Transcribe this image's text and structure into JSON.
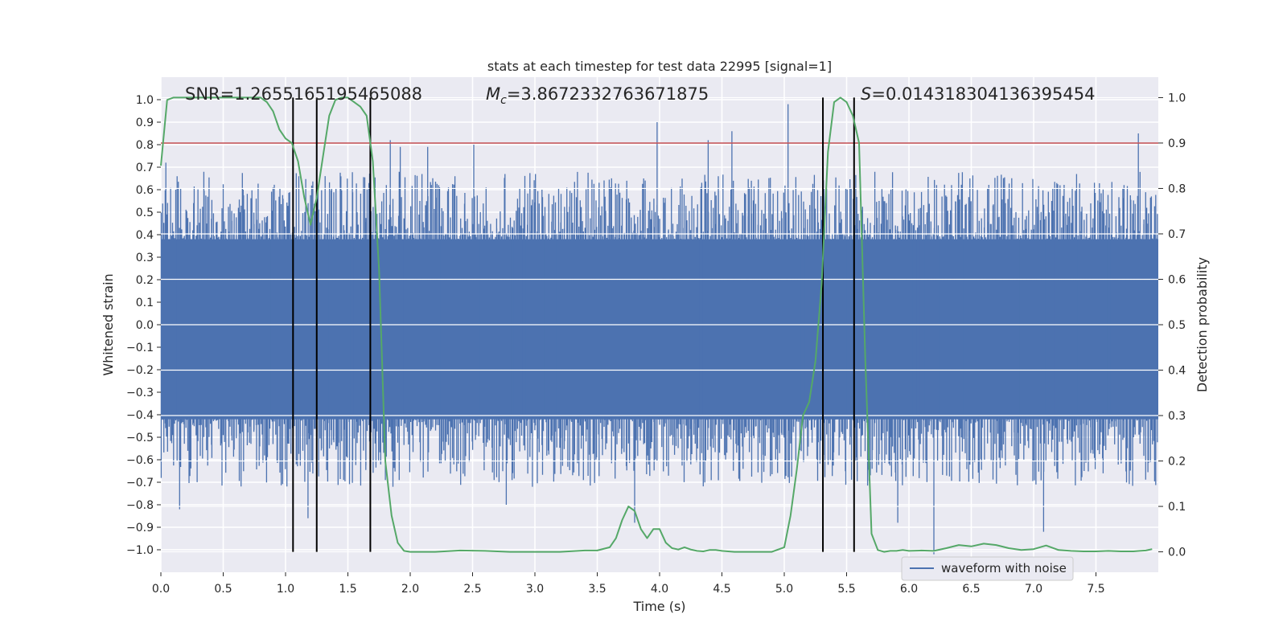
{
  "chart_data": {
    "type": "line",
    "title": "stats at each timestep for test data 22995 [signal=1]",
    "xlabel": "Time (s)",
    "ylabel": "Whitened strain",
    "y2label": "Detection probability",
    "xlim": [
      0.0,
      8.0
    ],
    "ylim": [
      -1.1,
      1.1
    ],
    "y2lim": [
      -0.045,
      1.045
    ],
    "xticks": [
      0.0,
      0.5,
      1.0,
      1.5,
      2.0,
      2.5,
      3.0,
      3.5,
      4.0,
      4.5,
      5.0,
      5.5,
      6.0,
      6.5,
      7.0,
      7.5
    ],
    "yticks": [
      1.0,
      0.9,
      0.8,
      0.7,
      0.6,
      0.5,
      0.4,
      0.3,
      0.2,
      0.1,
      0.0,
      -0.1,
      -0.2,
      -0.3,
      -0.4,
      -0.5,
      -0.6,
      -0.7,
      -0.8,
      -0.9,
      -1.0
    ],
    "y2ticks": [
      1.0,
      0.9,
      0.8,
      0.7,
      0.6,
      0.5,
      0.4,
      0.3,
      0.2,
      0.1,
      0.0
    ],
    "grid": true,
    "legend": {
      "location": "lower-right",
      "entries": [
        "waveform with noise"
      ]
    },
    "annotations": {
      "snr": "SNR=1.2655165195465088",
      "mc": "=3.8672332763671875",
      "mc_symbol": "M",
      "mc_sub": "c",
      "s": "=0.014318304136395454",
      "s_symbol": "S"
    },
    "threshold": {
      "value": 0.9,
      "axis": "detection probability",
      "color": "#c44e52"
    },
    "vertical_lines": [
      1.06,
      1.25,
      1.68,
      5.31,
      5.56
    ],
    "vertical_line_range": [
      0.0,
      1.0
    ],
    "waveform_envelope": {
      "name": "waveform with noise",
      "color": "#4c72b0",
      "dense_band": [
        -0.42,
        0.38
      ],
      "typical_peak": 0.68,
      "typical_trough": -0.72,
      "notable_peaks": [
        {
          "t": 0.04,
          "v": 0.72
        },
        {
          "t": 0.13,
          "v": 0.66
        },
        {
          "t": 0.66,
          "v": 0.6
        },
        {
          "t": 1.26,
          "v": 0.6
        },
        {
          "t": 1.84,
          "v": 0.82
        },
        {
          "t": 1.92,
          "v": 0.79
        },
        {
          "t": 2.14,
          "v": 0.79
        },
        {
          "t": 2.51,
          "v": 0.8
        },
        {
          "t": 3.98,
          "v": 0.9
        },
        {
          "t": 4.39,
          "v": 0.82
        },
        {
          "t": 4.58,
          "v": 0.86
        },
        {
          "t": 5.03,
          "v": 0.98
        },
        {
          "t": 7.84,
          "v": 0.85
        }
      ],
      "notable_troughs": [
        {
          "t": 0.15,
          "v": -0.82
        },
        {
          "t": 1.18,
          "v": -0.86
        },
        {
          "t": 2.77,
          "v": -0.8
        },
        {
          "t": 3.8,
          "v": -0.88
        },
        {
          "t": 5.91,
          "v": -0.88
        },
        {
          "t": 6.2,
          "v": -1.02
        },
        {
          "t": 7.08,
          "v": -0.92
        }
      ]
    },
    "series": [
      {
        "name": "detection probability",
        "axis": "right",
        "color": "#55a868",
        "x": [
          0.0,
          0.05,
          0.1,
          0.15,
          0.2,
          0.3,
          0.4,
          0.5,
          0.6,
          0.7,
          0.8,
          0.85,
          0.9,
          0.95,
          1.0,
          1.05,
          1.1,
          1.15,
          1.2,
          1.25,
          1.3,
          1.35,
          1.4,
          1.45,
          1.5,
          1.55,
          1.6,
          1.65,
          1.7,
          1.75,
          1.8,
          1.85,
          1.9,
          1.95,
          2.0,
          2.2,
          2.4,
          2.6,
          2.8,
          3.0,
          3.2,
          3.4,
          3.5,
          3.6,
          3.65,
          3.7,
          3.75,
          3.8,
          3.85,
          3.9,
          3.95,
          4.0,
          4.05,
          4.1,
          4.15,
          4.2,
          4.25,
          4.3,
          4.35,
          4.4,
          4.45,
          4.5,
          4.6,
          4.7,
          4.8,
          4.9,
          5.0,
          5.05,
          5.1,
          5.15,
          5.2,
          5.25,
          5.3,
          5.35,
          5.4,
          5.45,
          5.5,
          5.55,
          5.6,
          5.65,
          5.7,
          5.75,
          5.8,
          5.85,
          5.9,
          5.95,
          6.0,
          6.1,
          6.2,
          6.3,
          6.4,
          6.5,
          6.6,
          6.7,
          6.8,
          6.9,
          7.0,
          7.1,
          7.2,
          7.3,
          7.4,
          7.5,
          7.6,
          7.7,
          7.8,
          7.85,
          7.9,
          7.95
        ],
        "y": [
          0.85,
          0.995,
          1.0,
          1.0,
          1.0,
          1.0,
          1.0,
          1.0,
          1.0,
          1.0,
          1.0,
          0.99,
          0.97,
          0.93,
          0.91,
          0.9,
          0.86,
          0.78,
          0.72,
          0.78,
          0.87,
          0.96,
          0.995,
          1.0,
          1.0,
          0.99,
          0.98,
          0.96,
          0.86,
          0.62,
          0.2,
          0.08,
          0.02,
          0.002,
          0.0,
          0.0,
          0.003,
          0.002,
          0.0,
          0.0,
          0.0,
          0.003,
          0.003,
          0.01,
          0.03,
          0.07,
          0.1,
          0.09,
          0.05,
          0.03,
          0.05,
          0.05,
          0.02,
          0.008,
          0.005,
          0.01,
          0.005,
          0.002,
          0.001,
          0.004,
          0.004,
          0.002,
          0.0,
          0.0,
          0.0,
          0.0,
          0.01,
          0.08,
          0.18,
          0.3,
          0.33,
          0.42,
          0.59,
          0.88,
          0.99,
          1.0,
          0.99,
          0.96,
          0.9,
          0.42,
          0.04,
          0.004,
          0.0,
          0.002,
          0.002,
          0.004,
          0.002,
          0.003,
          0.002,
          0.008,
          0.015,
          0.012,
          0.018,
          0.015,
          0.008,
          0.004,
          0.006,
          0.014,
          0.004,
          0.002,
          0.001,
          0.001,
          0.002,
          0.001,
          0.001,
          0.002,
          0.003,
          0.006
        ]
      }
    ]
  }
}
